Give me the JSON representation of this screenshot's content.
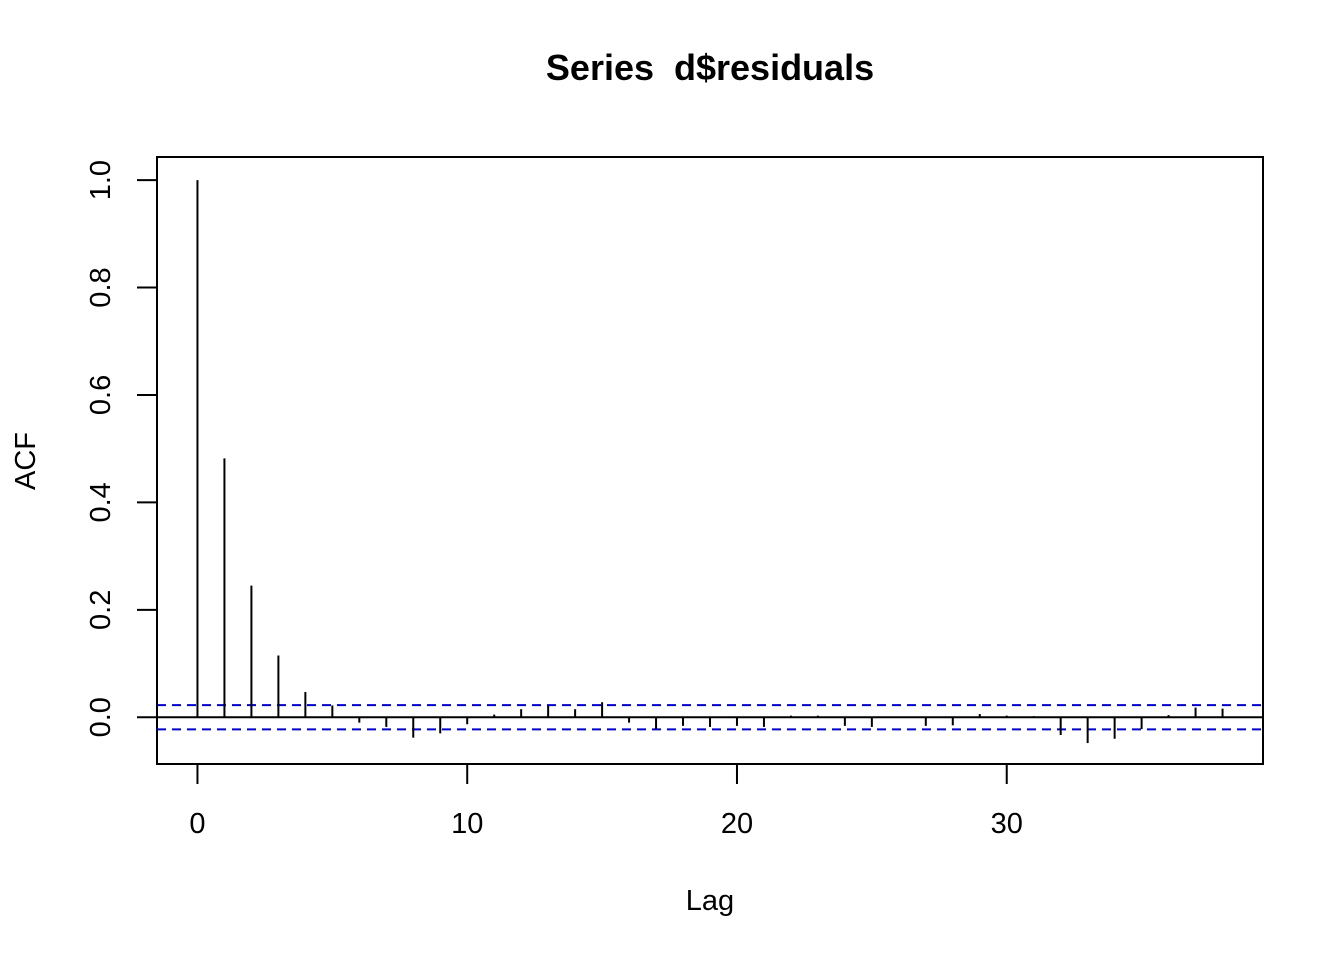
{
  "chart_data": {
    "type": "bar",
    "subtype": "acf-correlogram",
    "title": "Series  d$residuals",
    "xlabel": "Lag",
    "ylabel": "ACF",
    "xlim": [
      -1.5,
      39.5
    ],
    "ylim": [
      -0.087,
      1.043
    ],
    "x_ticks": [
      0,
      10,
      20,
      30
    ],
    "x_tick_labels": [
      "0",
      "10",
      "20",
      "30"
    ],
    "y_ticks": [
      0.0,
      0.2,
      0.4,
      0.6,
      0.8,
      1.0
    ],
    "y_tick_labels": [
      "0.0",
      "0.2",
      "0.4",
      "0.6",
      "0.8",
      "1.0"
    ],
    "lags": [
      0,
      1,
      2,
      3,
      4,
      5,
      6,
      7,
      8,
      9,
      10,
      11,
      12,
      13,
      14,
      15,
      16,
      17,
      18,
      19,
      20,
      21,
      22,
      23,
      24,
      25,
      26,
      27,
      28,
      29,
      30,
      31,
      32,
      33,
      34,
      35,
      36,
      37,
      38
    ],
    "acf": [
      1.0,
      0.482,
      0.245,
      0.115,
      0.047,
      0.022,
      -0.01,
      -0.018,
      -0.038,
      -0.03,
      -0.013,
      0.005,
      0.015,
      0.022,
      0.015,
      0.028,
      -0.01,
      -0.022,
      -0.016,
      -0.018,
      -0.016,
      -0.018,
      0.003,
      0.003,
      -0.016,
      -0.018,
      0.0,
      -0.016,
      -0.015,
      0.006,
      0.003,
      0.002,
      -0.033,
      -0.048,
      -0.04,
      -0.022,
      0.004,
      0.018,
      0.016
    ],
    "confidence_bound": 0.0225,
    "grid": false,
    "colors": {
      "bars": "#000000",
      "zero_line": "#000000",
      "confidence_lines": "#0000CD",
      "background": "#ffffff"
    }
  }
}
